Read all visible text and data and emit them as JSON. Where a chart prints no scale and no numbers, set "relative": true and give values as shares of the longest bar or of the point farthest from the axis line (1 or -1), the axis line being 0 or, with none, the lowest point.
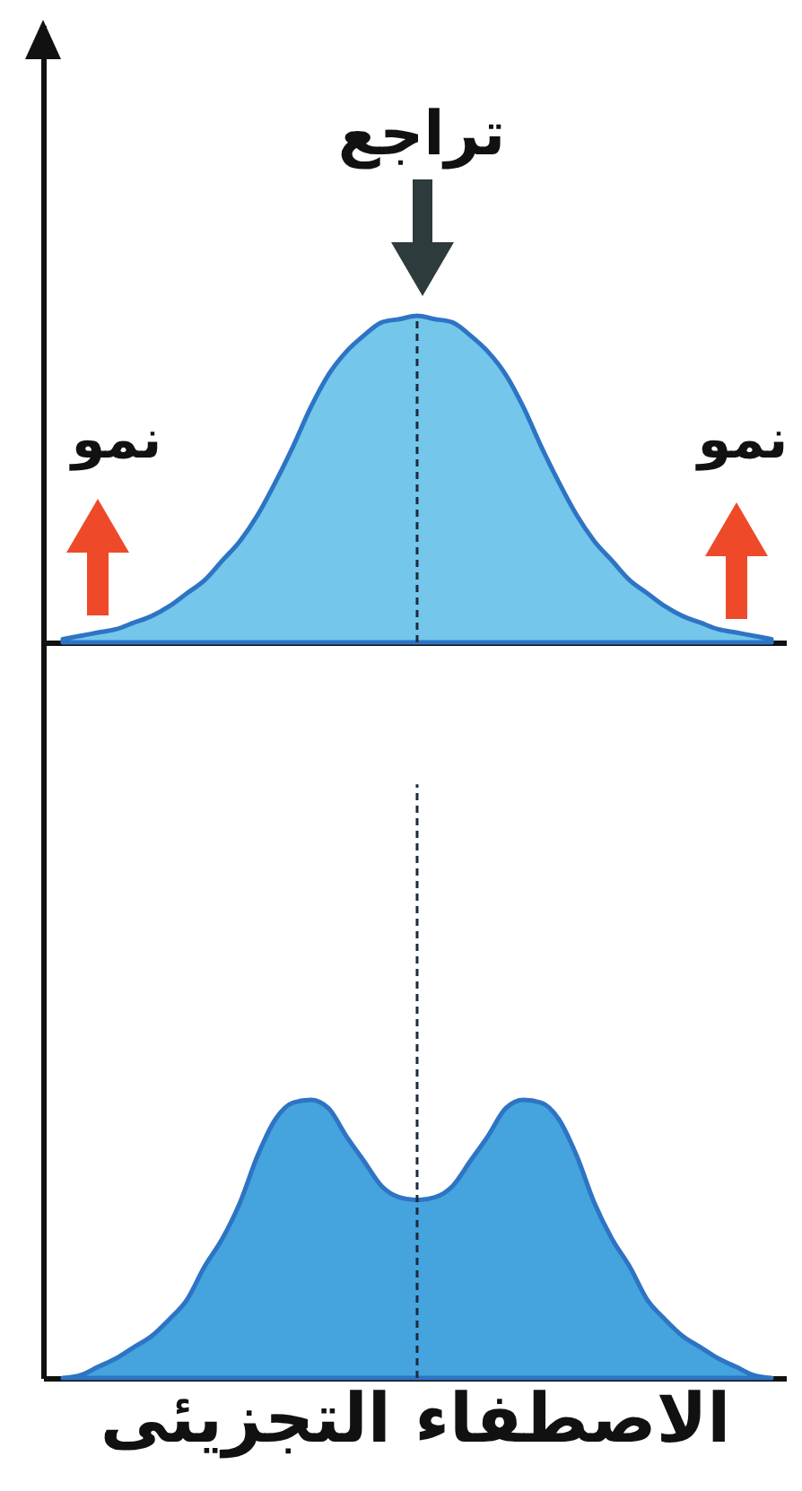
{
  "chart_data": [
    {
      "type": "area",
      "relative": true,
      "categories": [
        null,
        null,
        null,
        null,
        null,
        null,
        null,
        null,
        null,
        null,
        null,
        null,
        null,
        null,
        null,
        null,
        null,
        null,
        null,
        null,
        null,
        null,
        null,
        null,
        null,
        null,
        null,
        null,
        null,
        null,
        null,
        null,
        null,
        null,
        null,
        null,
        null,
        null,
        null,
        null,
        null
      ],
      "color": "#74c6ea",
      "values": [
        0.01,
        0.02,
        0.03,
        0.04,
        0.06,
        0.08,
        0.11,
        0.15,
        0.19,
        0.25,
        0.31,
        0.39,
        0.49,
        0.6,
        0.72,
        0.82,
        0.89,
        0.94,
        0.98,
        0.99,
        1,
        0.99,
        0.98,
        0.94,
        0.89,
        0.82,
        0.72,
        0.6,
        0.49,
        0.39,
        0.31,
        0.25,
        0.19,
        0.15,
        0.11,
        0.08,
        0.06,
        0.04,
        0.03,
        0.02,
        0.01
      ],
      "annotations": [
        "تراجع",
        "نمو",
        "نمو"
      ]
    },
    {
      "type": "area",
      "relative": true,
      "xlabel": "الاصطفاء التجزيئى",
      "categories": [
        null,
        null,
        null,
        null,
        null,
        null,
        null,
        null,
        null,
        null,
        null,
        null,
        null,
        null,
        null,
        null,
        null,
        null,
        null,
        null,
        null,
        null,
        null,
        null,
        null,
        null,
        null,
        null,
        null,
        null,
        null,
        null,
        null,
        null,
        null,
        null,
        null,
        null,
        null,
        null,
        null
      ],
      "color": "#45a3dd",
      "values": [
        0,
        0.01,
        0.04,
        0.07,
        0.11,
        0.15,
        0.21,
        0.28,
        0.4,
        0.5,
        0.63,
        0.8,
        0.93,
        0.99,
        1,
        0.97,
        0.87,
        0.78,
        0.69,
        0.65,
        0.64,
        0.65,
        0.69,
        0.78,
        0.87,
        0.97,
        1,
        0.99,
        0.93,
        0.8,
        0.63,
        0.5,
        0.4,
        0.28,
        0.21,
        0.15,
        0.11,
        0.07,
        0.04,
        0.01,
        0
      ]
    }
  ]
}
